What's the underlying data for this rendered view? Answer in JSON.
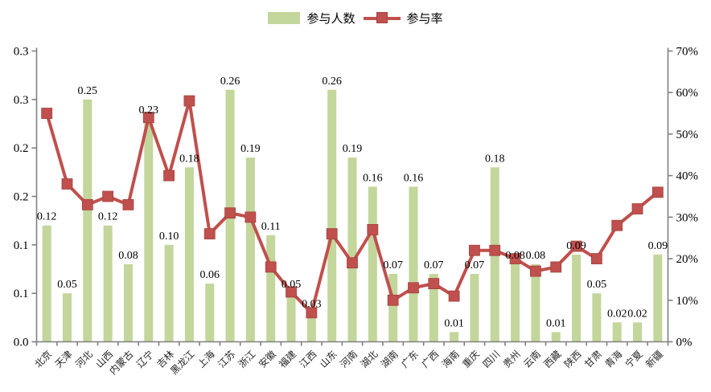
{
  "legend": {
    "series1_label": "参与人数",
    "series2_label": "参与率"
  },
  "colors": {
    "bar": "#c3d69b",
    "line": "#c0504d",
    "marker_edge": "#a2423f",
    "axis": "#808080",
    "text": "#000000"
  },
  "chart_data": {
    "type": "bar+line combo",
    "title": "",
    "grid": false,
    "legend_position": "top-center",
    "categories": [
      "北京",
      "天津",
      "河北",
      "山西",
      "内蒙古",
      "辽宁",
      "吉林",
      "黑龙江",
      "上海",
      "江苏",
      "浙江",
      "安徽",
      "福建",
      "江西",
      "山东",
      "河南",
      "湖北",
      "湖南",
      "广东",
      "广西",
      "海南",
      "重庆",
      "四川",
      "贵州",
      "云南",
      "西藏",
      "陕西",
      "甘肃",
      "青海",
      "宁夏",
      "新疆"
    ],
    "series": [
      {
        "name": "参与人数",
        "type": "bar",
        "axis": "left",
        "values": [
          0.12,
          0.05,
          0.25,
          0.12,
          0.08,
          0.23,
          0.1,
          0.18,
          0.06,
          0.26,
          0.19,
          0.11,
          0.05,
          0.03,
          0.26,
          0.19,
          0.16,
          0.07,
          0.16,
          0.07,
          0.01,
          0.07,
          0.18,
          0.08,
          0.08,
          0.01,
          0.09,
          0.05,
          0.02,
          0.02,
          0.09
        ],
        "data_labels_visible": true
      },
      {
        "name": "参与率",
        "type": "line",
        "axis": "right",
        "values_percent": [
          55,
          38,
          33,
          35,
          33,
          54,
          40,
          58,
          26,
          31,
          30,
          18,
          12,
          7,
          26,
          19,
          27,
          10,
          13,
          14,
          11,
          22,
          22,
          20,
          17,
          18,
          23,
          20,
          28,
          32,
          36
        ],
        "marker": "square"
      }
    ],
    "left_axis": {
      "min": 0,
      "max": 0.3,
      "tick_step": 0.05,
      "tick_labels_bottom_to_top": [
        "0.0",
        "0.1",
        "0.1",
        "0.2",
        "0.2",
        "0.3",
        "0.3"
      ]
    },
    "right_axis": {
      "min": "0%",
      "max": "70%",
      "tick_step": "10%",
      "tick_labels_bottom_to_top": [
        "0%",
        "10%",
        "20%",
        "30%",
        "40%",
        "50%",
        "60%",
        "70%"
      ]
    }
  }
}
